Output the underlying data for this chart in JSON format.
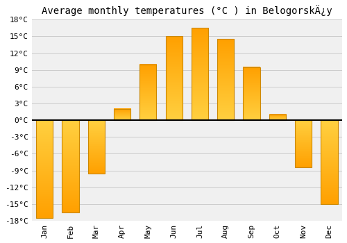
{
  "title": "Average monthly temperatures (°C ) in BelogorskÄ¿y",
  "months": [
    "Jan",
    "Feb",
    "Mar",
    "Apr",
    "May",
    "Jun",
    "Jul",
    "Aug",
    "Sep",
    "Oct",
    "Nov",
    "Dec"
  ],
  "values": [
    -17.5,
    -16.5,
    -9.5,
    2.0,
    10.0,
    15.0,
    16.5,
    14.5,
    9.5,
    1.0,
    -8.5,
    -15.0
  ],
  "bar_color_top": "#FFD040",
  "bar_color_bottom": "#FFA000",
  "bar_edge_color": "#CC8800",
  "ylim": [
    -18,
    18
  ],
  "yticks": [
    -18,
    -15,
    -12,
    -9,
    -6,
    -3,
    0,
    3,
    6,
    9,
    12,
    15,
    18
  ],
  "ytick_labels": [
    "-18°C",
    "-15°C",
    "-12°C",
    "-9°C",
    "-6°C",
    "-3°C",
    "0°C",
    "3°C",
    "6°C",
    "9°C",
    "12°C",
    "15°C",
    "18°C"
  ],
  "bg_color": "#ffffff",
  "plot_bg_color": "#f0f0f0",
  "grid_color": "#cccccc",
  "title_fontsize": 10,
  "tick_fontsize": 8,
  "bar_width": 0.65
}
